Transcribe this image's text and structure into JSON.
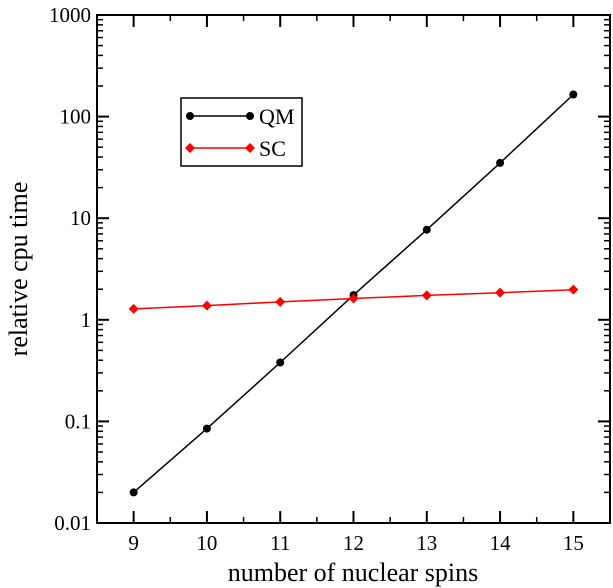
{
  "chart_data": {
    "type": "line",
    "title": "",
    "xlabel": "number of nuclear spins",
    "ylabel": "relative cpu time",
    "x": [
      9,
      10,
      11,
      12,
      13,
      14,
      15
    ],
    "xlim": [
      8.5,
      15.5
    ],
    "ylim": [
      0.01,
      1000
    ],
    "yscale": "log",
    "xticks": [
      "9",
      "10",
      "11",
      "12",
      "13",
      "14",
      "15"
    ],
    "yticks": [
      "0.01",
      "0.1",
      "1",
      "10",
      "100",
      "1000"
    ],
    "grid": false,
    "legend_position": "top-left",
    "series": [
      {
        "name": "QM",
        "color": "#000000",
        "marker": "circle",
        "values": [
          0.02,
          0.085,
          0.38,
          1.75,
          7.7,
          35,
          165
        ]
      },
      {
        "name": "SC",
        "color": "#ff0000",
        "marker": "diamond",
        "values": [
          1.28,
          1.38,
          1.5,
          1.62,
          1.74,
          1.85,
          1.98
        ]
      }
    ]
  }
}
